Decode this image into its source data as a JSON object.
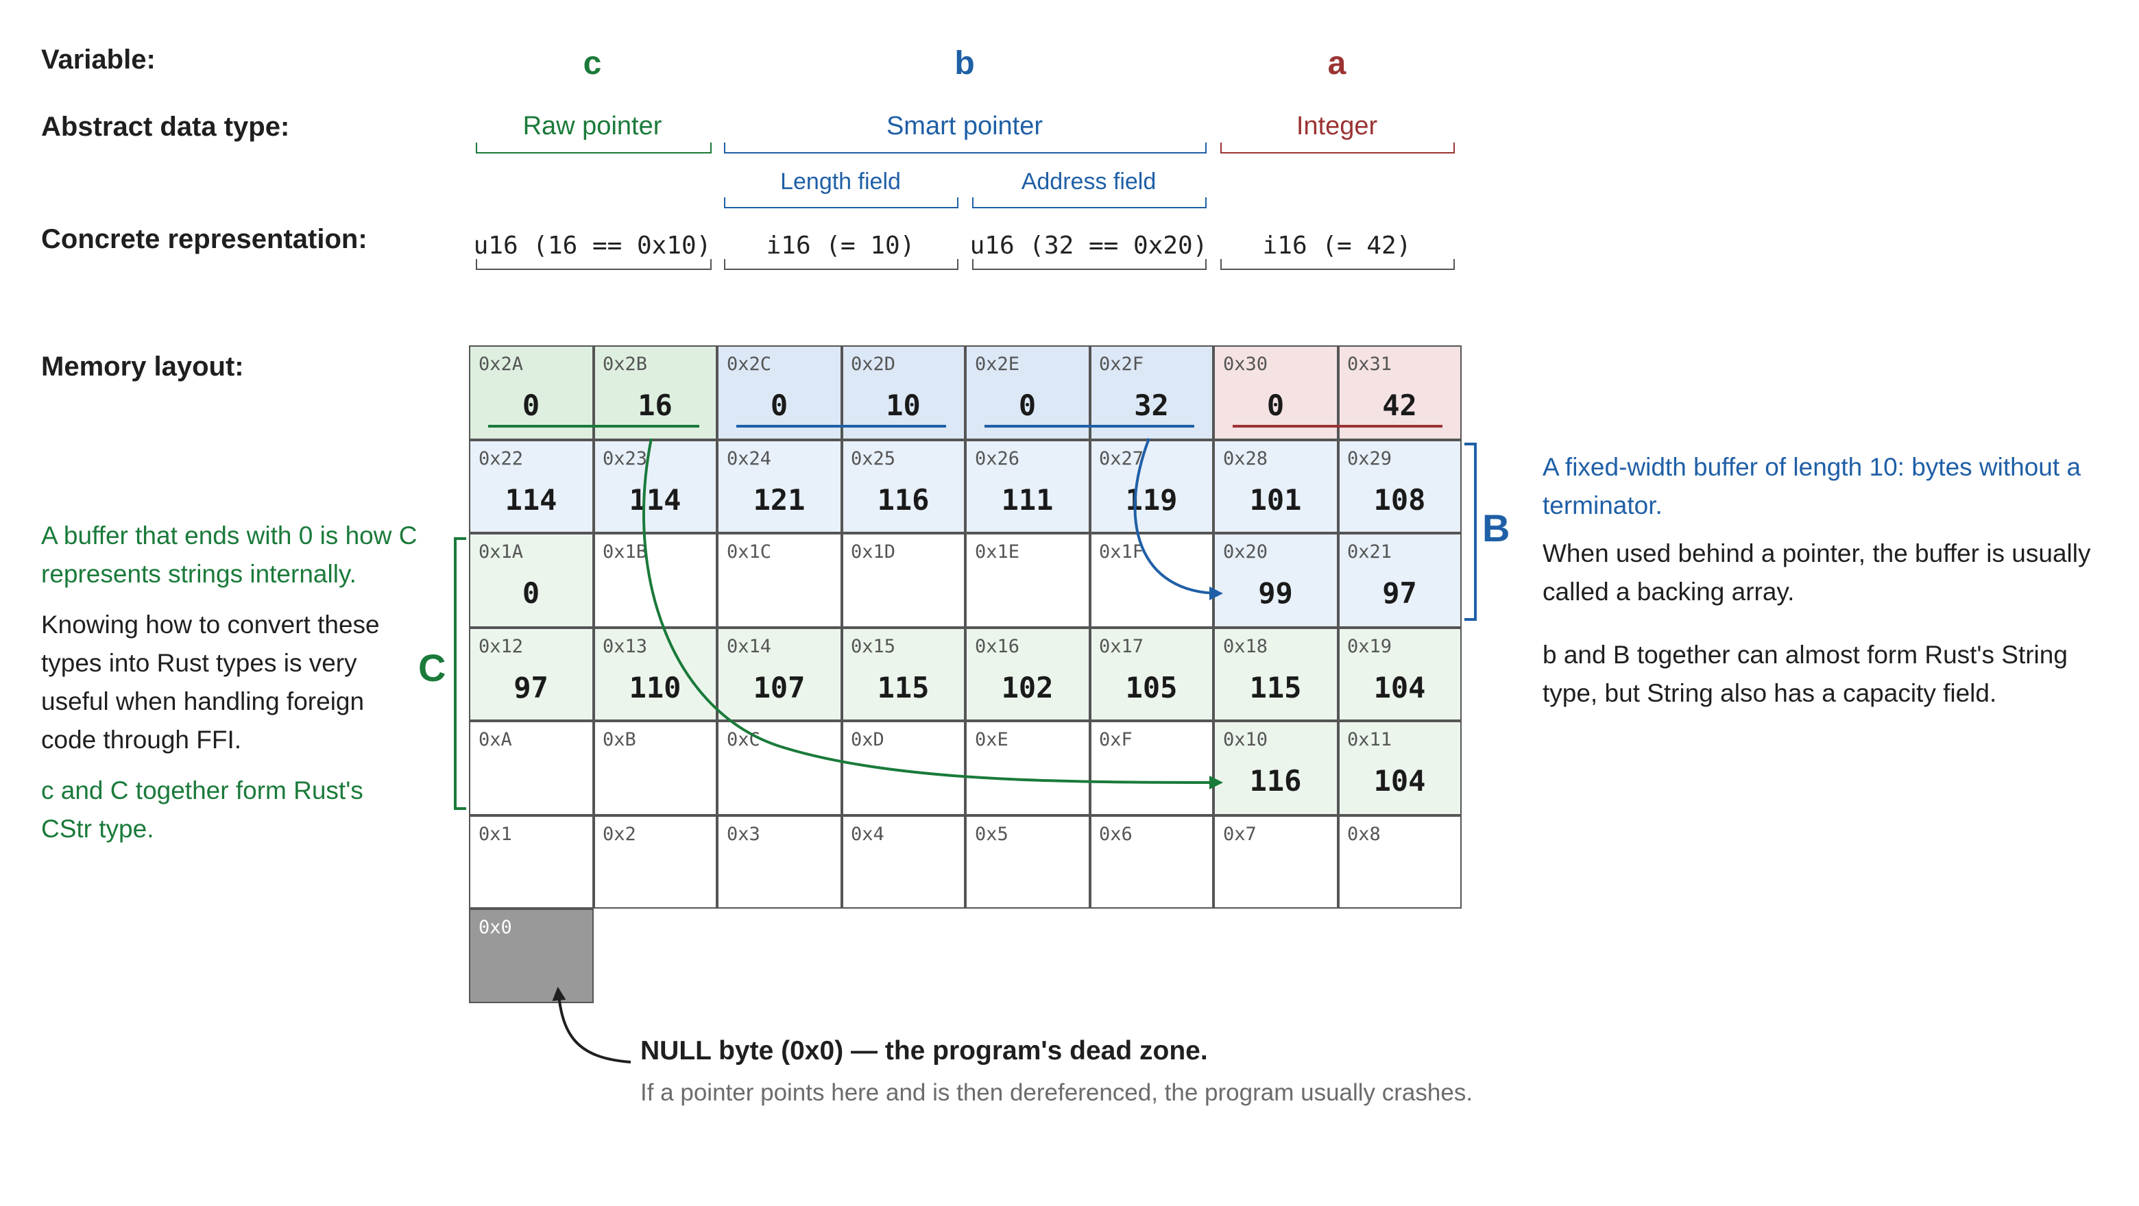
{
  "colors": {
    "green": "#1a7a3a",
    "blue": "#1f5fa6",
    "red": "#9b3333",
    "dark": "#1f1f1f",
    "gray_text": "#6b6b6b",
    "green_bg": "#deefdf",
    "green_bg_light": "#ebf5ec",
    "blue_bg": "#dce8f6",
    "blue_bg_light": "#e8f0f9",
    "red_bg": "#f5e2e2",
    "null_bg": "#999999"
  },
  "labels": {
    "variable": "Variable:",
    "abstract": "Abstract data type:",
    "concrete": "Concrete representation:",
    "memory": "Memory layout:"
  },
  "variables": {
    "c": "c",
    "b": "b",
    "a": "a"
  },
  "types": {
    "c": "Raw pointer",
    "b": "Smart pointer",
    "a": "Integer",
    "length_field": "Length field",
    "address_field": "Address field"
  },
  "concrete": {
    "c": "u16 (16 == 0x10)",
    "len": "i16 (= 10)",
    "addr": "u16 (32 == 0x20)",
    "a": "i16 (= 42)"
  },
  "memory": {
    "rows": [
      [
        {
          "addr": "0x2A",
          "val": "0",
          "tone": "green"
        },
        {
          "addr": "0x2B",
          "val": "16",
          "tone": "green"
        },
        {
          "addr": "0x2C",
          "val": "0",
          "tone": "blue"
        },
        {
          "addr": "0x2D",
          "val": "10",
          "tone": "blue"
        },
        {
          "addr": "0x2E",
          "val": "0",
          "tone": "blue"
        },
        {
          "addr": "0x2F",
          "val": "32",
          "tone": "blue"
        },
        {
          "addr": "0x30",
          "val": "0",
          "tone": "red"
        },
        {
          "addr": "0x31",
          "val": "42",
          "tone": "red"
        }
      ],
      [
        {
          "addr": "0x22",
          "val": "114",
          "tone": "blue_light"
        },
        {
          "addr": "0x23",
          "val": "114",
          "tone": "blue_light"
        },
        {
          "addr": "0x24",
          "val": "121",
          "tone": "blue_light"
        },
        {
          "addr": "0x25",
          "val": "116",
          "tone": "blue_light"
        },
        {
          "addr": "0x26",
          "val": "111",
          "tone": "blue_light"
        },
        {
          "addr": "0x27",
          "val": "119",
          "tone": "blue_light"
        },
        {
          "addr": "0x28",
          "val": "101",
          "tone": "blue_light"
        },
        {
          "addr": "0x29",
          "val": "108",
          "tone": "blue_light"
        }
      ],
      [
        {
          "addr": "0x1A",
          "val": "0",
          "tone": "green_light"
        },
        {
          "addr": "0x1B",
          "val": "",
          "tone": "white"
        },
        {
          "addr": "0x1C",
          "val": "",
          "tone": "white"
        },
        {
          "addr": "0x1D",
          "val": "",
          "tone": "white"
        },
        {
          "addr": "0x1E",
          "val": "",
          "tone": "white"
        },
        {
          "addr": "0x1F",
          "val": "",
          "tone": "white"
        },
        {
          "addr": "0x20",
          "val": "99",
          "tone": "blue_light"
        },
        {
          "addr": "0x21",
          "val": "97",
          "tone": "blue_light"
        }
      ],
      [
        {
          "addr": "0x12",
          "val": "97",
          "tone": "green_light"
        },
        {
          "addr": "0x13",
          "val": "110",
          "tone": "green_light"
        },
        {
          "addr": "0x14",
          "val": "107",
          "tone": "green_light"
        },
        {
          "addr": "0x15",
          "val": "115",
          "tone": "green_light"
        },
        {
          "addr": "0x16",
          "val": "102",
          "tone": "green_light"
        },
        {
          "addr": "0x17",
          "val": "105",
          "tone": "green_light"
        },
        {
          "addr": "0x18",
          "val": "115",
          "tone": "green_light"
        },
        {
          "addr": "0x19",
          "val": "104",
          "tone": "green_light"
        }
      ],
      [
        {
          "addr": "0xA",
          "val": "",
          "tone": "white"
        },
        {
          "addr": "0xB",
          "val": "",
          "tone": "white"
        },
        {
          "addr": "0xC",
          "val": "",
          "tone": "white"
        },
        {
          "addr": "0xD",
          "val": "",
          "tone": "white"
        },
        {
          "addr": "0xE",
          "val": "",
          "tone": "white"
        },
        {
          "addr": "0xF",
          "val": "",
          "tone": "white"
        },
        {
          "addr": "0x10",
          "val": "116",
          "tone": "green_light"
        },
        {
          "addr": "0x11",
          "val": "104",
          "tone": "green_light"
        }
      ],
      [
        {
          "addr": "0x1",
          "val": "",
          "tone": "white"
        },
        {
          "addr": "0x2",
          "val": "",
          "tone": "white"
        },
        {
          "addr": "0x3",
          "val": "",
          "tone": "white"
        },
        {
          "addr": "0x4",
          "val": "",
          "tone": "white"
        },
        {
          "addr": "0x5",
          "val": "",
          "tone": "white"
        },
        {
          "addr": "0x6",
          "val": "",
          "tone": "white"
        },
        {
          "addr": "0x7",
          "val": "",
          "tone": "white"
        },
        {
          "addr": "0x8",
          "val": "",
          "tone": "white"
        }
      ]
    ],
    "null_cell": {
      "addr": "0x0"
    }
  },
  "left_notes": {
    "p1": "A buffer that ends with 0 is how C represents strings internally.",
    "p2": "Knowing how to convert these types into Rust types is very useful when handling foreign code through FFI.",
    "p3": "c and C together form Rust's CStr type.",
    "letter": "C"
  },
  "right_notes": {
    "p1": "A fixed-width buffer of length 10: bytes without a terminator.",
    "p2": "When used behind a pointer, the buffer is usually called a backing array.",
    "p3": "b and B together can almost form Rust's String type, but String also has a capacity field.",
    "letter": "B"
  },
  "null_note": {
    "title": "NULL byte (0x0) — the program's dead zone.",
    "body": "If a pointer points here and is then dereferenced, the program usually crashes."
  }
}
